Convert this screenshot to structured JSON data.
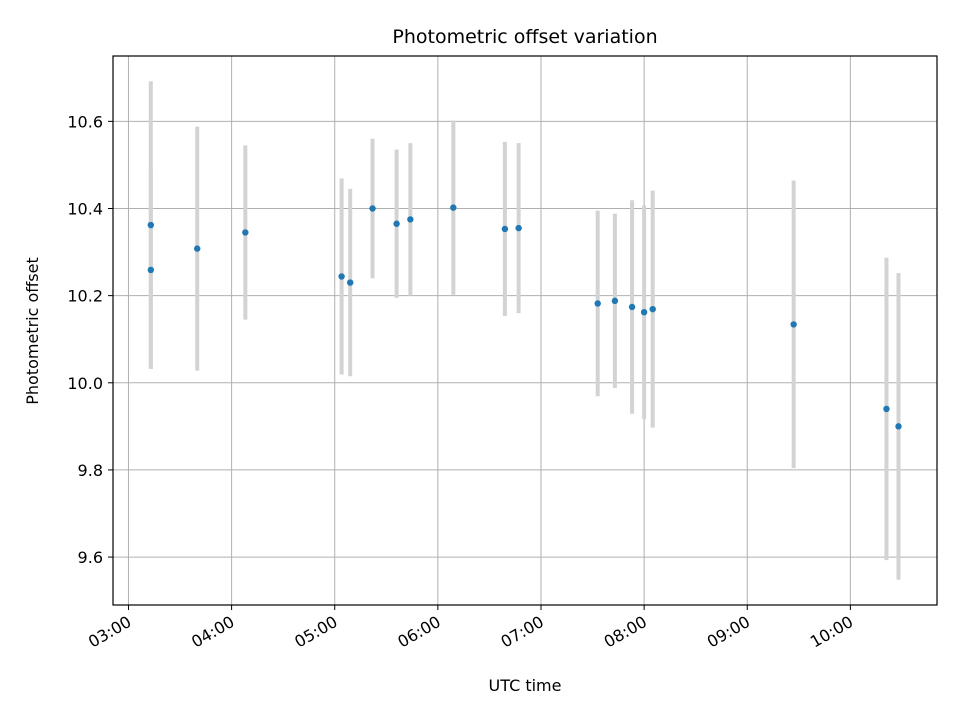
{
  "chart_data": {
    "type": "scatter",
    "title": "Photometric offset variation",
    "xlabel": "UTC time",
    "ylabel": "Photometric offset",
    "x_ticks": [
      "03:00",
      "04:00",
      "05:00",
      "06:00",
      "07:00",
      "08:00",
      "09:00",
      "10:00"
    ],
    "x_tick_hours": [
      3,
      4,
      5,
      6,
      7,
      8,
      9,
      10
    ],
    "y_ticks": [
      "9.6",
      "9.8",
      "10.0",
      "10.2",
      "10.4",
      "10.6"
    ],
    "y_tick_values": [
      9.6,
      9.8,
      10.0,
      10.2,
      10.4,
      10.6
    ],
    "xlim_hours": [
      2.85,
      10.84
    ],
    "ylim": [
      9.49,
      10.75
    ],
    "grid": true,
    "colors": {
      "point": "#1f77b4",
      "errorbar": "#d3d3d3",
      "grid": "#b0b0b0"
    },
    "series": [
      {
        "points": [
          {
            "t": "03:13",
            "y": 10.362,
            "yerr": 0.33
          },
          {
            "t": "03:13",
            "y": 10.259,
            "yerr": 0.227
          },
          {
            "t": "03:40",
            "y": 10.308,
            "yerr": 0.28
          },
          {
            "t": "04:08",
            "y": 10.345,
            "yerr": 0.2
          },
          {
            "t": "05:04",
            "y": 10.244,
            "yerr": 0.225
          },
          {
            "t": "05:09",
            "y": 10.23,
            "yerr": 0.215
          },
          {
            "t": "05:22",
            "y": 10.4,
            "yerr": 0.16
          },
          {
            "t": "05:36",
            "y": 10.365,
            "yerr": 0.17
          },
          {
            "t": "05:44",
            "y": 10.375,
            "yerr": 0.175
          },
          {
            "t": "06:09",
            "y": 10.402,
            "yerr": 0.2
          },
          {
            "t": "06:39",
            "y": 10.353,
            "yerr": 0.2
          },
          {
            "t": "06:47",
            "y": 10.355,
            "yerr": 0.195
          },
          {
            "t": "07:33",
            "y": 10.182,
            "yerr": 0.213
          },
          {
            "t": "07:43",
            "y": 10.188,
            "yerr": 0.2
          },
          {
            "t": "07:53",
            "y": 10.174,
            "yerr": 0.245
          },
          {
            "t": "08:00",
            "y": 10.162,
            "yerr": 0.245
          },
          {
            "t": "08:05",
            "y": 10.169,
            "yerr": 0.272
          },
          {
            "t": "09:27",
            "y": 10.134,
            "yerr": 0.33
          },
          {
            "t": "10:21",
            "y": 9.94,
            "yerr": 0.347
          },
          {
            "t": "10:28",
            "y": 9.9,
            "yerr": 0.352
          }
        ]
      }
    ]
  }
}
